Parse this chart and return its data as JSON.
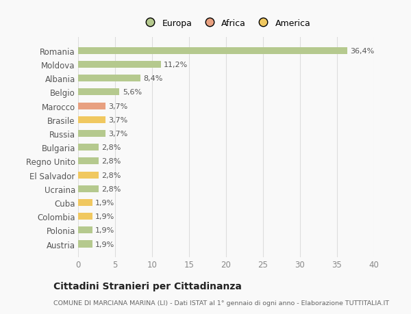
{
  "categories": [
    "Romania",
    "Moldova",
    "Albania",
    "Belgio",
    "Marocco",
    "Brasile",
    "Russia",
    "Bulgaria",
    "Regno Unito",
    "El Salvador",
    "Ucraina",
    "Cuba",
    "Colombia",
    "Polonia",
    "Austria"
  ],
  "values": [
    36.4,
    11.2,
    8.4,
    5.6,
    3.7,
    3.7,
    3.7,
    2.8,
    2.8,
    2.8,
    2.8,
    1.9,
    1.9,
    1.9,
    1.9
  ],
  "labels": [
    "36,4%",
    "11,2%",
    "8,4%",
    "5,6%",
    "3,7%",
    "3,7%",
    "3,7%",
    "2,8%",
    "2,8%",
    "2,8%",
    "2,8%",
    "1,9%",
    "1,9%",
    "1,9%",
    "1,9%"
  ],
  "continent": [
    "Europa",
    "Europa",
    "Europa",
    "Europa",
    "Africa",
    "America",
    "Europa",
    "Europa",
    "Europa",
    "America",
    "Europa",
    "America",
    "America",
    "Europa",
    "Europa"
  ],
  "colors": {
    "Europa": "#b5c98e",
    "Africa": "#e8a080",
    "America": "#f0c860"
  },
  "xlim": [
    0,
    40
  ],
  "xticks": [
    0,
    5,
    10,
    15,
    20,
    25,
    30,
    35,
    40
  ],
  "title": "Cittadini Stranieri per Cittadinanza",
  "subtitle": "COMUNE DI MARCIANA MARINA (LI) - Dati ISTAT al 1° gennaio di ogni anno - Elaborazione TUTTITALIA.IT",
  "background_color": "#f9f9f9",
  "grid_color": "#dddddd",
  "bar_height": 0.5
}
